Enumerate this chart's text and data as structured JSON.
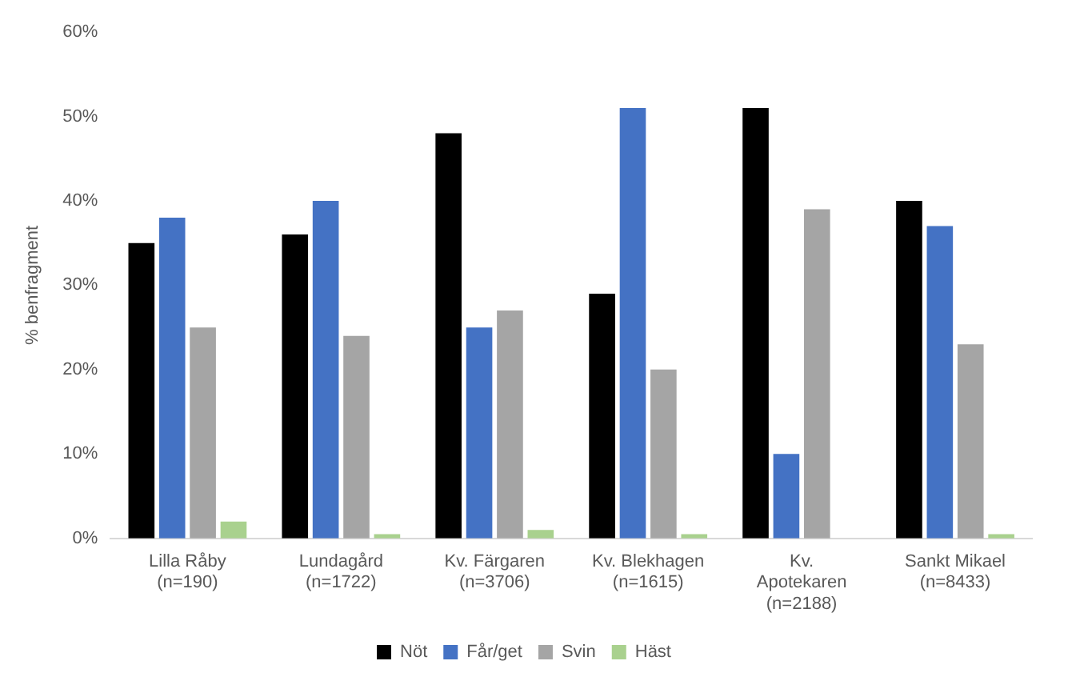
{
  "chart_data": {
    "type": "bar",
    "ylabel": "% benfragment",
    "categories": [
      "Lilla Råby\n(n=190)",
      "Lundagård\n(n=1722)",
      "Kv. Färgaren\n(n=3706)",
      "Kv. Blekhagen\n(n=1615)",
      "Kv.\nApotekaren\n(n=2188)",
      "Sankt Mikael\n(n=8433)"
    ],
    "series": [
      {
        "name": "Nöt",
        "color": "#000000",
        "values": [
          35,
          36,
          48,
          29,
          51,
          40
        ]
      },
      {
        "name": "Får/get",
        "color": "#4472c4",
        "values": [
          38,
          40,
          25,
          51,
          10,
          37
        ]
      },
      {
        "name": "Svin",
        "color": "#a5a5a5",
        "values": [
          25,
          24,
          27,
          20,
          39,
          23
        ]
      },
      {
        "name": "Häst",
        "color": "#a9d18e",
        "values": [
          2,
          0.5,
          1,
          0.5,
          0,
          0.5
        ]
      }
    ],
    "ylim": [
      0,
      60
    ],
    "yticks": [
      {
        "value": 0,
        "label": "0%"
      },
      {
        "value": 10,
        "label": "10%"
      },
      {
        "value": 20,
        "label": "20%"
      },
      {
        "value": 30,
        "label": "30%"
      },
      {
        "value": 40,
        "label": "40%"
      },
      {
        "value": 50,
        "label": "50%"
      },
      {
        "value": 60,
        "label": "60%"
      }
    ],
    "grid": false,
    "legend": "bottom"
  }
}
